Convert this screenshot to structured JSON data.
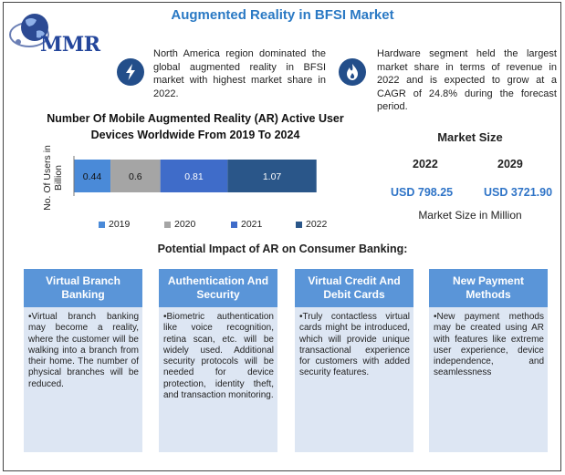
{
  "header": {
    "logo_text": "MMR",
    "title": "Augmented Reality in BFSI Market"
  },
  "facts": [
    {
      "icon": "lightning-icon",
      "text": "North America region dominated the global augmented reality in BFSI market with highest market share in 2022."
    },
    {
      "icon": "flame-icon",
      "text": "Hardware segment held the largest market share in terms of revenue in 2022 and is expected to grow at a CAGR of 24.8% during the forecast period."
    }
  ],
  "chart_data": {
    "type": "bar",
    "orientation": "horizontal-stacked",
    "title": "Number Of Mobile Augmented Reality (AR) Active User Devices Worldwide From 2019 To 2024",
    "ylabel": "No. Of Users in Billion",
    "series": [
      {
        "name": "2019",
        "values": [
          0.44
        ],
        "label": "0.44",
        "color": "#4a8ad8"
      },
      {
        "name": "2020",
        "values": [
          0.6
        ],
        "label": "0.6",
        "color": "#a5a5a5"
      },
      {
        "name": "2021",
        "values": [
          0.81
        ],
        "label": "0.81",
        "color": "#3f6cc9"
      },
      {
        "name": "2022",
        "values": [
          1.07
        ],
        "label": "1.07",
        "color": "#2a5689"
      }
    ],
    "grid": false,
    "legend": "bottom"
  },
  "market_size": {
    "title": "Market Size",
    "years": [
      "2022",
      "2029"
    ],
    "values": [
      "USD 798.25",
      "USD 3721.90"
    ],
    "unit": "Market Size in Million"
  },
  "impact": {
    "title": "Potential Impact of AR on Consumer Banking:",
    "cards": [
      {
        "title": "Virtual Branch Banking",
        "body": "•Virtual branch banking may become a reality, where the customer will be walking into a branch from their home. The number of physical branches will be reduced."
      },
      {
        "title": "Authentication And Security",
        "body": "•Biometric authentication like voice recognition, retina scan, etc. will be widely used. Additional security protocols will be needed for device protection, identity theft, and transaction monitoring."
      },
      {
        "title": "Virtual Credit And Debit Cards",
        "body": "•Truly contactless virtual cards might be introduced, which will provide unique transactional experience for customers with added security features."
      },
      {
        "title": "New Payment Methods",
        "body": "•New payment methods may be created using AR with features like extreme user experience, device independence, and seamlessness"
      }
    ]
  }
}
